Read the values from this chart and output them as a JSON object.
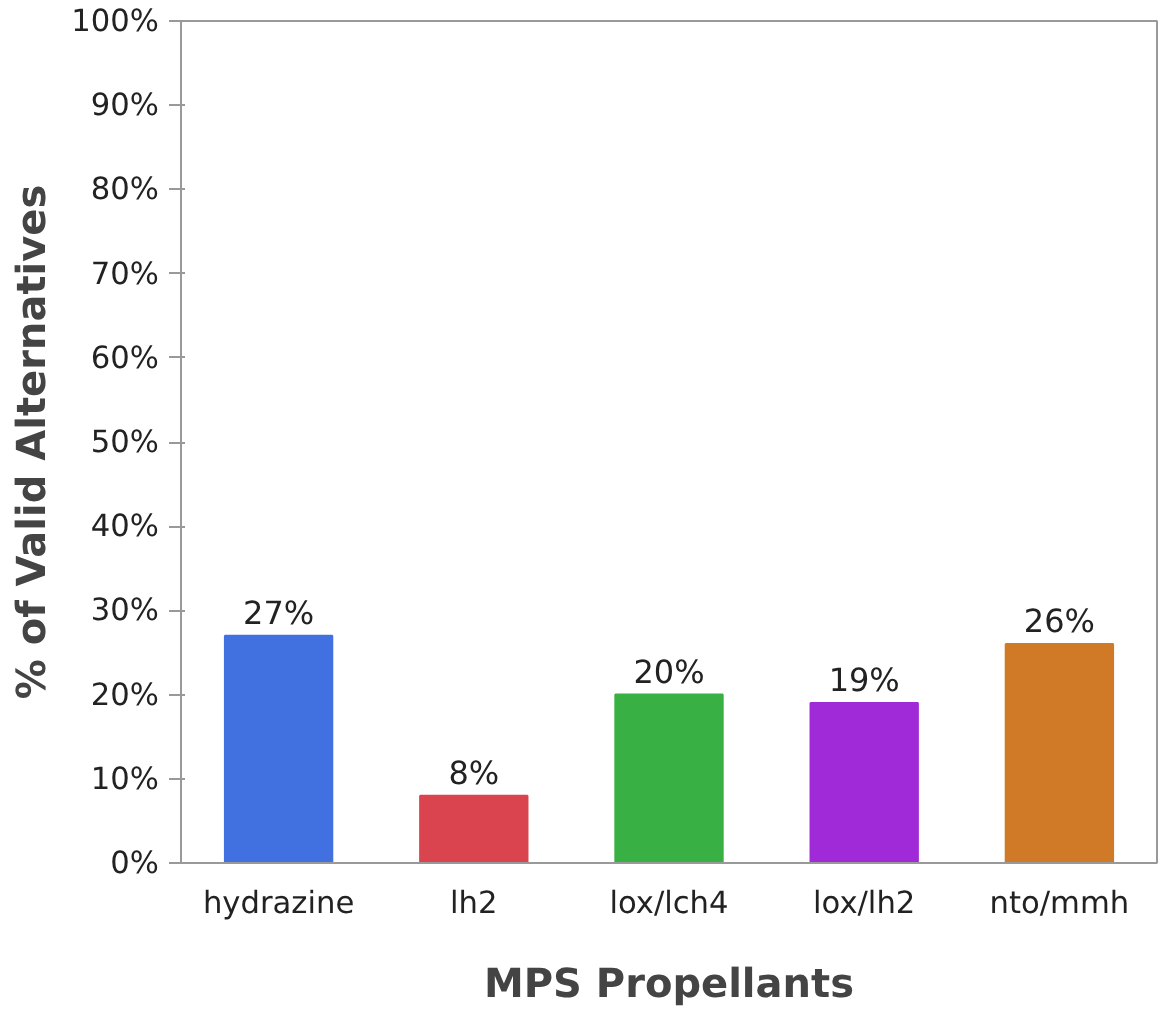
{
  "chart_data": {
    "type": "bar",
    "xlabel": "MPS Propellants",
    "ylabel": "% of Valid Alternatives",
    "categories": [
      "hydrazine",
      "lh2",
      "lox/lch4",
      "lox/lh2",
      "nto/mmh"
    ],
    "values": [
      27,
      8,
      20,
      19,
      26
    ],
    "colors": [
      "#4170e0",
      "#d9444f",
      "#39b043",
      "#a12ad8",
      "#d07a27"
    ],
    "value_labels": [
      "27%",
      "8%",
      "20%",
      "19%",
      "26%"
    ],
    "ylim": [
      0,
      100
    ],
    "yticks": [
      {
        "value": 0,
        "label": "0%"
      },
      {
        "value": 10,
        "label": "10%"
      },
      {
        "value": 20,
        "label": "20%"
      },
      {
        "value": 30,
        "label": "30%"
      },
      {
        "value": 40,
        "label": "40%"
      },
      {
        "value": 50,
        "label": "50%"
      },
      {
        "value": 60,
        "label": "60%"
      },
      {
        "value": 70,
        "label": "70%"
      },
      {
        "value": 80,
        "label": "80%"
      },
      {
        "value": 90,
        "label": "90%"
      },
      {
        "value": 100,
        "label": "100%"
      }
    ],
    "grid": false
  }
}
